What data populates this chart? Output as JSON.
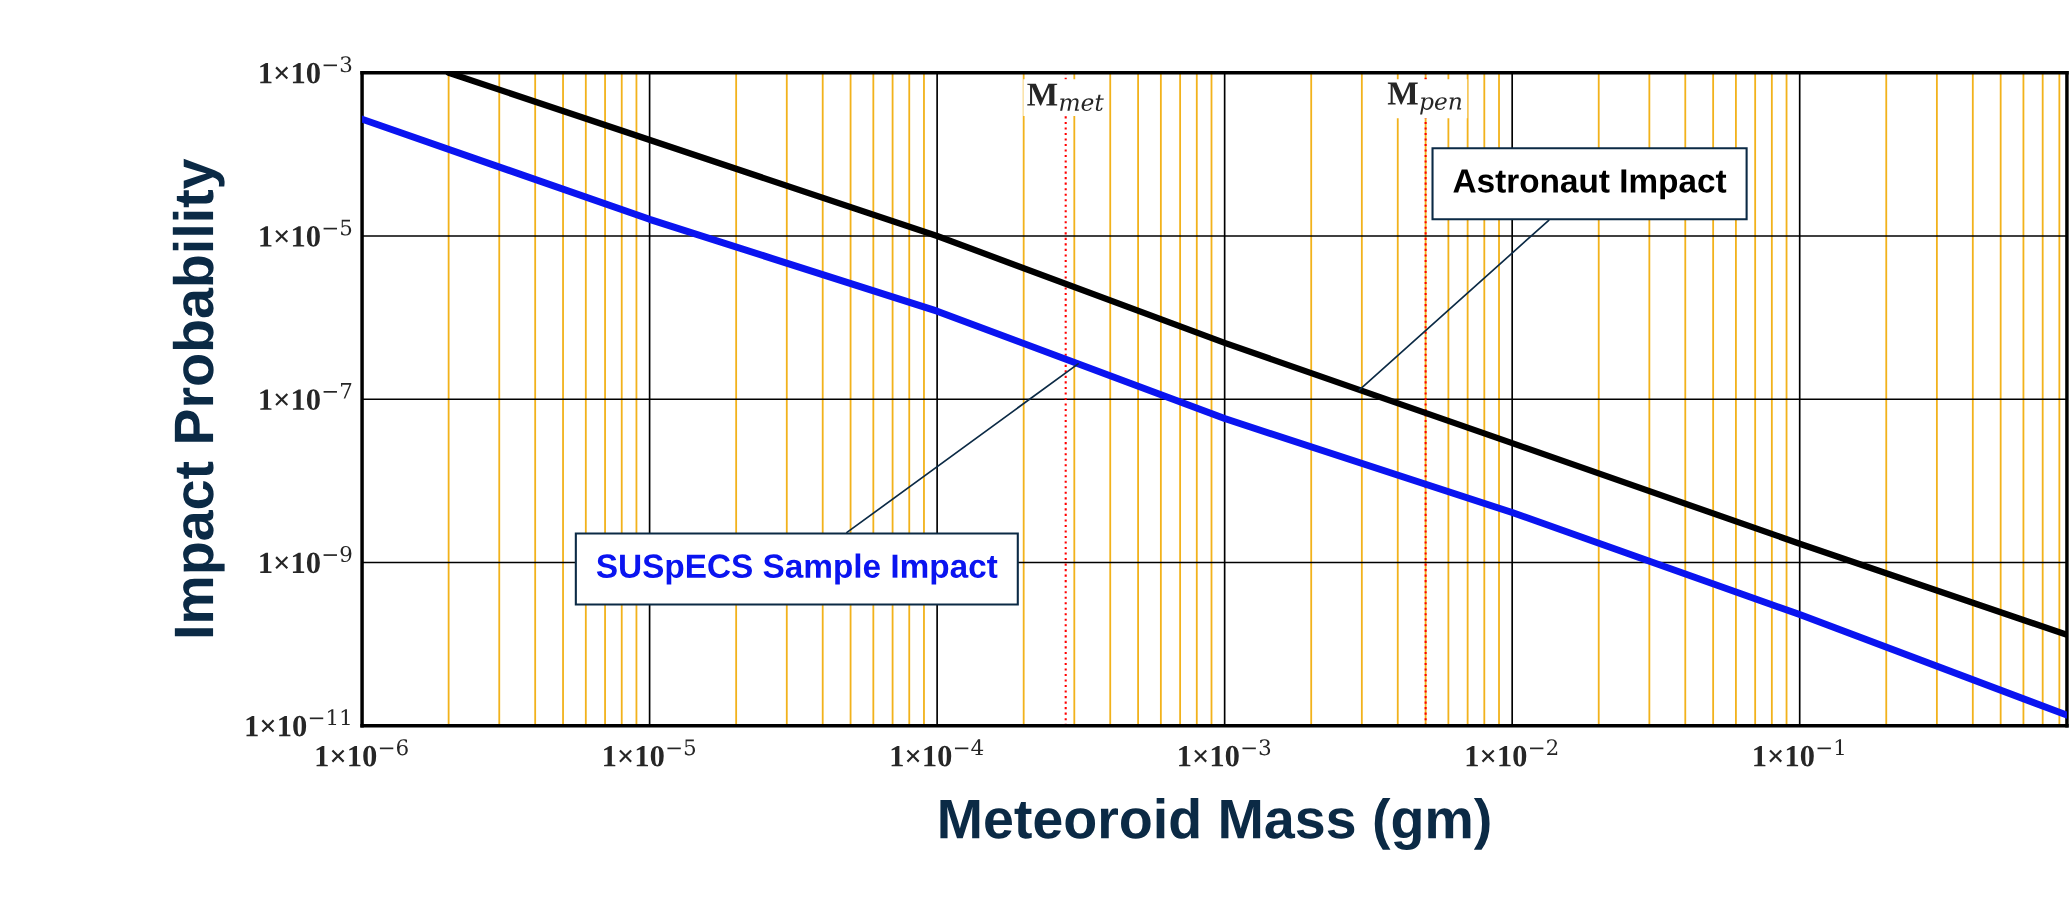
{
  "chart_data": {
    "type": "line",
    "xlabel": "Meteoroid Mass (gm)",
    "ylabel": "Impact Probability",
    "log": "xy",
    "series": [
      {
        "name": "Astronaut Impact",
        "color": "#000000",
        "x": [
          2e-06,
          0.0001,
          0.001,
          0.01,
          0.1,
          0.85
        ],
        "values": [
          0.001,
          1e-05,
          4.9e-07,
          2.9e-08,
          1.7e-09,
          1.3e-10
        ]
      },
      {
        "name": "SUSpECS Sample Impact",
        "color": "#0a14f0",
        "x": [
          1e-06,
          1e-05,
          0.0001,
          0.001,
          0.01,
          0.1,
          0.85
        ],
        "values": [
          0.00027,
          1.6e-05,
          1.2e-06,
          5.8e-08,
          4.1e-09,
          2.3e-10,
          1.35e-11
        ]
      }
    ],
    "xlim": [
      1e-06,
      0.85
    ],
    "ylim": [
      1e-11,
      0.001
    ],
    "xticks": [
      {
        "value": 1e-06,
        "label": "1×10$^{−6}$"
      },
      {
        "value": 2e-06,
        "label": null
      },
      {
        "value": 3e-06,
        "label": null
      },
      {
        "value": 4e-06,
        "label": null
      },
      {
        "value": 5e-06,
        "label": null
      },
      {
        "value": 6e-06,
        "label": null
      },
      {
        "value": 7e-06,
        "label": null
      },
      {
        "value": 8e-06,
        "label": null
      },
      {
        "value": 9e-06,
        "label": null
      },
      {
        "value": 1e-05,
        "label": "1×10$^{−5}$"
      },
      {
        "value": 2e-05,
        "label": null
      },
      {
        "value": 3e-05,
        "label": null
      },
      {
        "value": 4e-05,
        "label": null
      },
      {
        "value": 5e-05,
        "label": null
      },
      {
        "value": 6e-05,
        "label": null
      },
      {
        "value": 7e-05,
        "label": null
      },
      {
        "value": 8e-05,
        "label": null
      },
      {
        "value": 9e-05,
        "label": null
      },
      {
        "value": 0.0001,
        "label": "1×10$^{−4}$"
      },
      {
        "value": 0.0002,
        "label": null
      },
      {
        "value": 0.0003,
        "label": null
      },
      {
        "value": 0.0004,
        "label": null
      },
      {
        "value": 0.0005,
        "label": null
      },
      {
        "value": 0.0006,
        "label": null
      },
      {
        "value": 0.0007,
        "label": null
      },
      {
        "value": 0.0008,
        "label": null
      },
      {
        "value": 0.0009,
        "label": null
      },
      {
        "value": 0.001,
        "label": "1×10$^{−3}$"
      },
      {
        "value": 0.002,
        "label": null
      },
      {
        "value": 0.003,
        "label": null
      },
      {
        "value": 0.004,
        "label": null
      },
      {
        "value": 0.005,
        "label": null
      },
      {
        "value": 0.006,
        "label": null
      },
      {
        "value": 0.007,
        "label": null
      },
      {
        "value": 0.008,
        "label": null
      },
      {
        "value": 0.009,
        "label": null
      },
      {
        "value": 0.01,
        "label": "1×10$^{−2}$"
      },
      {
        "value": 0.02,
        "label": null
      },
      {
        "value": 0.03,
        "label": null
      },
      {
        "value": 0.04,
        "label": null
      },
      {
        "value": 0.05,
        "label": null
      },
      {
        "value": 0.06,
        "label": null
      },
      {
        "value": 0.07,
        "label": null
      },
      {
        "value": 0.08,
        "label": null
      },
      {
        "value": 0.09,
        "label": null
      },
      {
        "value": 0.1,
        "label": "1×10$^{−1}$"
      },
      {
        "value": 0.2,
        "label": null
      },
      {
        "value": 0.3,
        "label": null
      },
      {
        "value": 0.4,
        "label": null
      },
      {
        "value": 0.5,
        "label": null
      },
      {
        "value": 0.6,
        "label": null
      },
      {
        "value": 0.7,
        "label": null
      },
      {
        "value": 0.8,
        "label": null
      }
    ],
    "yticks": [
      {
        "value": 1e-11,
        "label": "1×10$^{−11}$"
      },
      {
        "value": 1e-09,
        "label": "1×10$^{−9}$"
      },
      {
        "value": 1e-07,
        "label": "1×10$^{−7}$"
      },
      {
        "value": 1e-05,
        "label": "1×10$^{−5}$"
      },
      {
        "value": 0.001,
        "label": "1×10$^{−3}$"
      }
    ],
    "ref_lines": [
      {
        "axis": "x",
        "value": 0.00028,
        "label": "M$_{met}$",
        "color": "#ff0000",
        "line_style": "dotted"
      },
      {
        "axis": "x",
        "value": 0.005,
        "label": "M$_{pen}$",
        "color": "#ff0000",
        "line_style": "dotted"
      }
    ],
    "grid": true,
    "legend": false,
    "marker": "none",
    "line_style": "solid"
  }
}
